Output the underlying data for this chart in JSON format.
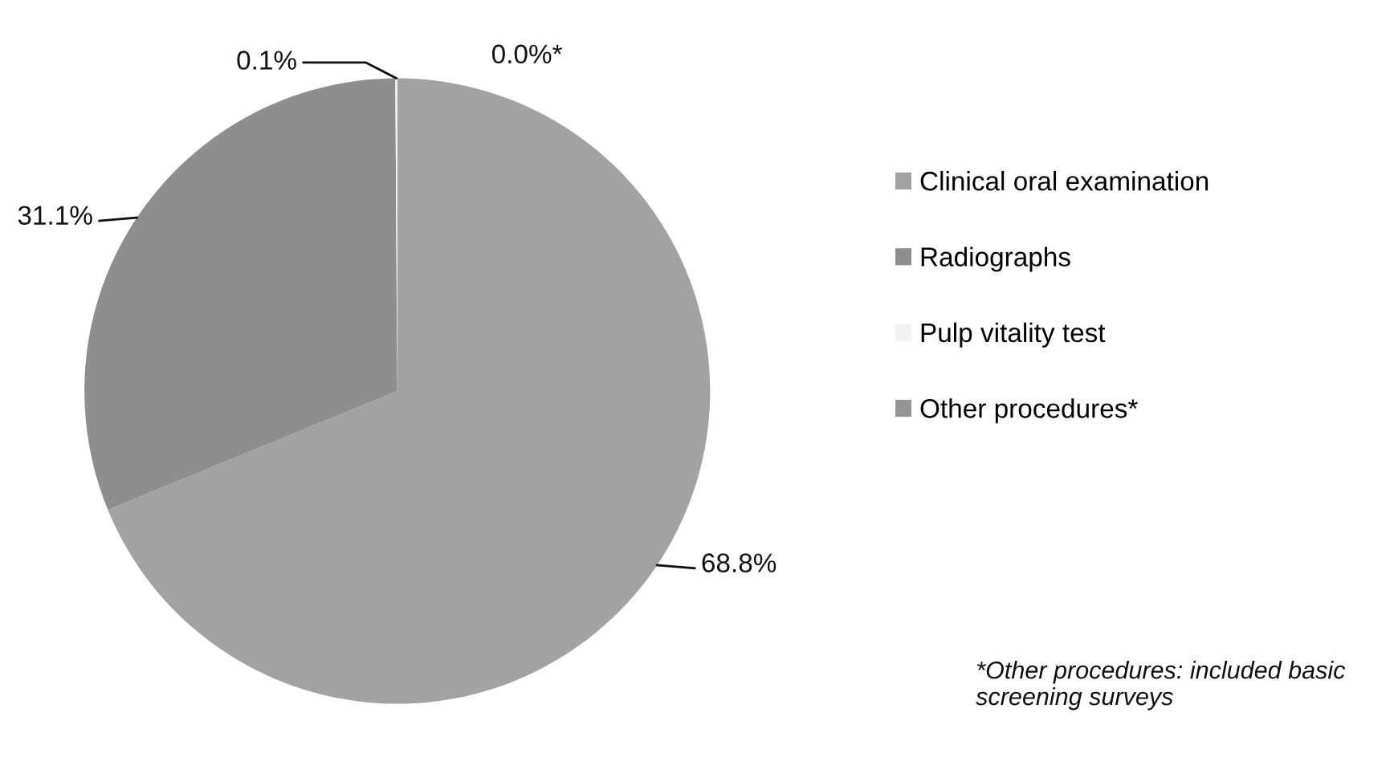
{
  "chart_data": {
    "type": "pie",
    "categories": [
      "Clinical oral examination",
      "Radiographs",
      "Pulp vitality test",
      "Other procedures*"
    ],
    "values": [
      68.8,
      31.1,
      0.1,
      0.0
    ],
    "value_labels": [
      "68.8%",
      "31.1%",
      "0.1%",
      "0.0%*"
    ],
    "colors": [
      "#a2a2a2",
      "#8e8e8e",
      "#f2f2f2",
      "#959595"
    ],
    "legend": "right",
    "annotations": [
      "*Other procedures: included basic screening surveys"
    ]
  }
}
